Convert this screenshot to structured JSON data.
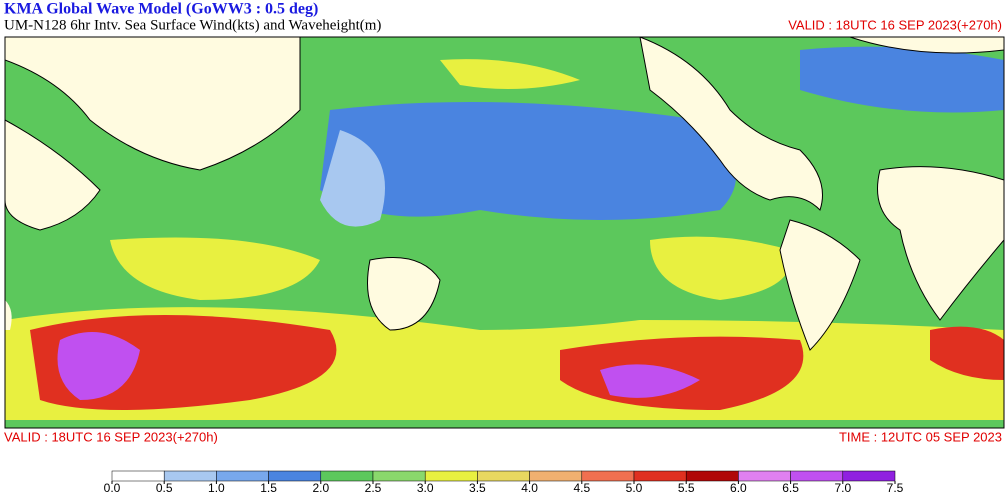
{
  "header": {
    "title": "KMA  Global Wave Model (GoWW3 : 0.5 deg)",
    "subtitle": "UM-N128  6hr Intv. Sea Surface Wind(kts) and Waveheight(m)",
    "valid_top": "VALID : 18UTC 16 SEP 2023(+270h)"
  },
  "footer": {
    "valid": "VALID : 18UTC 16 SEP 2023(+270h)",
    "time": "TIME : 12UTC 05 SEP 2023"
  },
  "colorbar": {
    "ticks": [
      {
        "value": 0,
        "label": "0.0"
      },
      {
        "value": 0.5,
        "label": "0.5"
      },
      {
        "value": 1,
        "label": "1.0"
      },
      {
        "value": 1.5,
        "label": "1.5"
      },
      {
        "value": 2,
        "label": "2.0"
      },
      {
        "value": 2.5,
        "label": "2.5"
      },
      {
        "value": 3,
        "label": "3.0"
      },
      {
        "value": 3.5,
        "label": "3.5"
      },
      {
        "value": 4,
        "label": "4.0"
      },
      {
        "value": 4.5,
        "label": "4.5"
      },
      {
        "value": 5,
        "label": "5.0"
      },
      {
        "value": 5.5,
        "label": "5.5"
      },
      {
        "value": 6,
        "label": "6.0"
      },
      {
        "value": 6.5,
        "label": "6.5"
      },
      {
        "value": 7,
        "label": "7.0"
      },
      {
        "value": 7.5,
        "label": "7.5"
      }
    ],
    "colors": [
      "#ffffff",
      "#a8c8f0",
      "#78a8ec",
      "#4a84e0",
      "#5cc85c",
      "#8ad86c",
      "#e8f040",
      "#e8d860",
      "#f0b070",
      "#f07050",
      "#e03020",
      "#b00808",
      "#e080f0",
      "#c050f0",
      "#9020e0"
    ]
  }
}
